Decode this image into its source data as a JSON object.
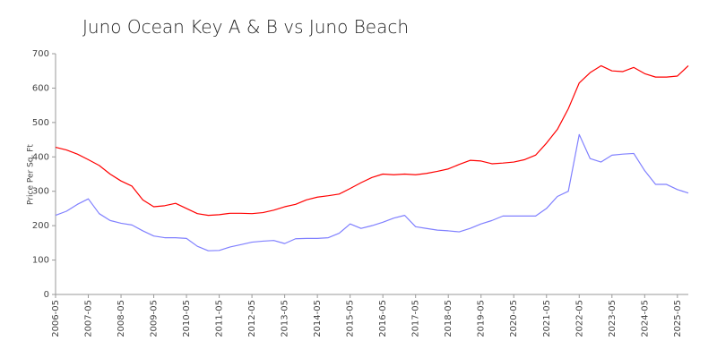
{
  "chart_data": {
    "type": "line",
    "title": "Juno Ocean Key A & B vs Juno Beach",
    "y_label": "Price Per Sq. Ft",
    "categories": [
      "2006-05",
      null,
      null,
      "2007-05",
      null,
      null,
      "2008-05",
      null,
      null,
      "2009-05",
      null,
      null,
      "2010-05",
      null,
      null,
      "2011-05",
      null,
      null,
      "2012-05",
      null,
      null,
      "2013-05",
      null,
      null,
      "2014-05",
      null,
      null,
      "2015-05",
      null,
      null,
      "2016-05",
      null,
      null,
      "2017-05",
      null,
      null,
      "2018-05",
      null,
      null,
      "2019-05",
      null,
      null,
      "2020-05",
      null,
      null,
      "2021-05",
      null,
      null,
      "2022-05",
      null,
      null,
      "2023-05",
      null,
      null,
      "2024-05",
      null,
      null,
      "2025-05",
      null
    ],
    "series": [
      {
        "color": "#ff0000",
        "values": [
          428,
          420,
          408,
          392,
          375,
          350,
          330,
          315,
          275,
          255,
          258,
          265,
          250,
          235,
          230,
          232,
          236,
          236,
          235,
          238,
          245,
          255,
          262,
          275,
          283,
          287,
          292,
          308,
          325,
          340,
          350,
          348,
          350,
          348,
          352,
          358,
          365,
          378,
          390,
          388,
          380,
          382,
          385,
          392,
          405,
          440,
          480,
          540,
          615,
          645,
          665,
          650,
          648,
          660,
          642,
          632,
          632,
          635,
          665
        ]
      },
      {
        "color": "#8080ff",
        "values": [
          230,
          242,
          262,
          278,
          235,
          215,
          207,
          202,
          185,
          170,
          165,
          165,
          163,
          140,
          127,
          128,
          138,
          145,
          152,
          155,
          157,
          148,
          162,
          163,
          163,
          165,
          178,
          205,
          192,
          200,
          210,
          222,
          230,
          197,
          192,
          187,
          185,
          182,
          192,
          205,
          215,
          228,
          228,
          228,
          228,
          250,
          285,
          300,
          465,
          395,
          385,
          405,
          408,
          410,
          360,
          320,
          320,
          305,
          295
        ]
      }
    ],
    "ylim": [
      0,
      700
    ],
    "yticks": [
      0,
      100,
      200,
      300,
      400,
      500,
      600,
      700
    ],
    "grid": false
  }
}
